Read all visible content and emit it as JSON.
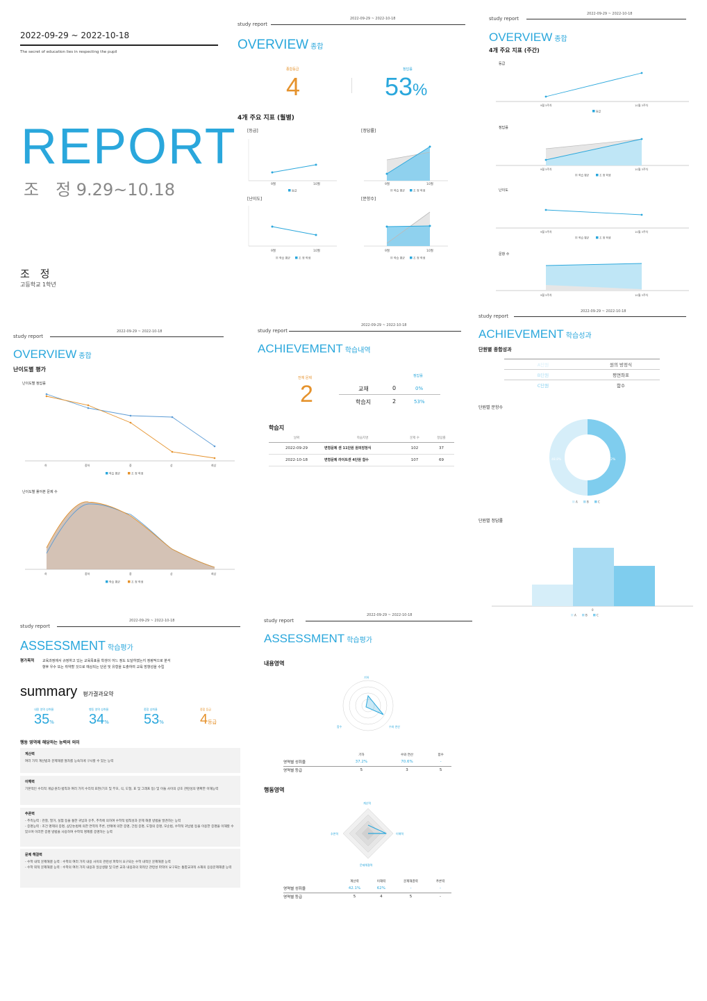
{
  "colors": {
    "accent": "#2aa7dc",
    "orange": "#e5922c",
    "light_blue": "#bfe6f6",
    "mid_blue": "#7fcdee",
    "grey": "#d9d9d9"
  },
  "cover": {
    "date_range": "2022-09-29 ~ 2022-10-18",
    "tagline": "The secret of education lies in respecting the pupil",
    "report": "REPORT",
    "name_period": "조　정 9.29~10.18",
    "name": "조　정",
    "grade": "고등학교 1학년"
  },
  "common": {
    "study_report": "study report",
    "date_range": "2022-09-29 ~ 2022-10-18"
  },
  "overview1": {
    "title": "OVERVIEW",
    "title_sub": "종합",
    "grade_label": "종합등급",
    "grade_value": "4",
    "rate_label": "정답률",
    "rate_value": "53",
    "rate_unit": "%",
    "section": "4개 주요 지표 (월별)",
    "chart_grade_title": "[등급]",
    "chart_rate_title": "[정답률]",
    "chart_diff_title": "[난이도]",
    "chart_count_title": "[문항수]"
  },
  "overview2": {
    "title": "OVERVIEW",
    "title_sub": "종합",
    "section": "4개 주요 지표 (주간)",
    "c1": "등급",
    "c2": "정답률",
    "c3": "난이도",
    "c4": "문항 수"
  },
  "overview3": {
    "title": "OVERVIEW",
    "title_sub": "종합",
    "section": "난이도별 평가",
    "c1": "난이도별 정답률",
    "c2": "난이도별 풀어본 문제 수"
  },
  "achievement1": {
    "title": "ACHIEVEMENT",
    "title_sub": "학습내역",
    "total_label": "전체 문제",
    "total_value": "2",
    "rate_label": "정답률",
    "rows": [
      {
        "name": "교재",
        "count": "0",
        "rate": "0%"
      },
      {
        "name": "학습지",
        "count": "2",
        "rate": "53%"
      }
    ],
    "section": "학습지",
    "table_headers": [
      "날짜",
      "학습지명",
      "문제 수",
      "정답률"
    ],
    "table_rows": [
      [
        "2022-09-29",
        "변형문제 센 11단원 원의방정식",
        "102",
        "37"
      ],
      [
        "2022-10-18",
        "변형문제 라이트센 4단원 함수",
        "107",
        "69"
      ]
    ]
  },
  "achievement2": {
    "title": "ACHIEVEMENT",
    "title_sub": "학습성과",
    "section": "단원별 종합성과",
    "units": [
      {
        "grade": "A단원",
        "name": "원의 방정식"
      },
      {
        "grade": "B단원",
        "name": "평면좌표"
      },
      {
        "grade": "C단원",
        "name": "함수"
      }
    ],
    "donut_title": "단원별 문항수",
    "bar_title": "단원별 정답률",
    "legend": [
      "A",
      "B",
      "C"
    ]
  },
  "assessment1": {
    "title": "ASSESSMENT",
    "title_sub": "학습평가",
    "purpose_label": "평가목적",
    "purpose_text_1": "교육과정에서 규정하고 있는 교육목표를 학생이 어느 정도 도달하였는지 정량적으로 분석",
    "purpose_text_2": "향후 우수 또는 취약할 것으로 예상되는 단원 및 유형을 도출하여 교육 방향성을 수립",
    "summary": "summary",
    "summary_sub": "평가결과요약",
    "stats": [
      {
        "label": "내용 영역 성취율",
        "value": "35",
        "unit": "%"
      },
      {
        "label": "행동 영역 성취율",
        "value": "34",
        "unit": "%"
      },
      {
        "label": "종합 성취율",
        "value": "53",
        "unit": "%"
      },
      {
        "label": "종합 등급",
        "value": "4",
        "unit": "등급"
      }
    ],
    "meaning_title": "행동 영역에 해당하는 능력의 의미",
    "boxes": [
      {
        "title": "계산력",
        "lines": [
          "여러 가지 계산법과 문제해결 절차를 능숙하게 구사할 수 있는 능력"
        ]
      },
      {
        "title": "이해력",
        "lines": [
          "기본적인 수리적 개념·원리·법칙과 여러 가지 수리적 표현(기호 및 부호, 식, 도형, 표 및 그래프 등) 및 이들 사이의 상호 관련성의 명확한 이해능력"
        ]
      },
      {
        "title": "추론력",
        "lines": [
          "- 추측능력 : 관찰, 열거, 실험 등을 통한 귀납과 유추, 추측에 의하여 수학적 법칙성과 문제 해결 방법을 발견하는 능력",
          "- 증명능력 : 조건 명제의 증명, 삼단논법에 의한 연역적 추론, 반례에 의한 증명, 간접 증명, 도형의 증명, 모순법, 수학적 귀납법 등을 이용한 증명을 이해할 수 있으며 이러한 증명 방법을 사용하여 수학적 명제를 증명하는 능력"
        ]
      },
      {
        "title": "문제 해결력",
        "lines": [
          "- 수학 내적 문제해결 능력 : 수학의 여러 가지 내용 사이의 관련성 파악이 요구되는 수학 내적인 문제해결 능력",
          "- 수학 외적 문제해결 능력 : 수학의 여러 가지 내용과 일상생활 및 다른 교과 내용과의 외적인 관련성 파악이 요구되는 통합교과적 소재의 응용문제해결 능력"
        ]
      }
    ]
  },
  "assessment2": {
    "title": "ASSESSMENT",
    "title_sub": "학습평가",
    "content_section": "내용영역",
    "content_axes": [
      "기하",
      "수와 연산",
      "함수"
    ],
    "content_row1_label": "영역별 성취율",
    "content_row1": [
      "37.2%",
      "70.6%",
      "-"
    ],
    "content_row2_label": "영역별 등급",
    "content_row2": [
      "5",
      "3",
      "5"
    ],
    "behavior_section": "행동영역",
    "behavior_axes": [
      "계산력",
      "이해력",
      "문제해결력",
      "추론력"
    ],
    "behavior_row1": [
      "42.1%",
      "62%",
      "-",
      "-"
    ],
    "behavior_row2": [
      "5",
      "4",
      "5",
      "-"
    ]
  },
  "chart_data": [
    {
      "type": "line",
      "title": "[등급]",
      "categories": [
        "9월",
        "10월"
      ],
      "series": [
        {
          "name": "등급",
          "values": [
            5,
            4
          ]
        }
      ]
    },
    {
      "type": "area",
      "title": "[정답률]",
      "categories": [
        "9월",
        "10월"
      ],
      "series": [
        {
          "name": "학습 평균",
          "values": [
            49,
            58
          ]
        },
        {
          "name": "조 정 학생",
          "values": [
            37,
            69
          ]
        }
      ]
    },
    {
      "type": "line",
      "title": "[난이도]",
      "categories": [
        "9월",
        "10월"
      ],
      "series": [
        {
          "name": "조 정 학생",
          "values": [
            3,
            2
          ]
        }
      ]
    },
    {
      "type": "area",
      "title": "[문항수]",
      "categories": [
        "9월",
        "10월"
      ],
      "series": [
        {
          "name": "학습 평균",
          "values": [
            40,
            130
          ]
        },
        {
          "name": "조 정 학생",
          "values": [
            102,
            107
          ]
        }
      ]
    },
    {
      "type": "bar",
      "title": "단원별 정답률",
      "categories": [
        "A",
        "B",
        "C"
      ],
      "values": [
        37,
        100,
        69
      ]
    },
    {
      "type": "pie",
      "title": "단원별 문항수",
      "categories": [
        "A",
        "C"
      ],
      "values": [
        48.8,
        51.2
      ]
    }
  ]
}
